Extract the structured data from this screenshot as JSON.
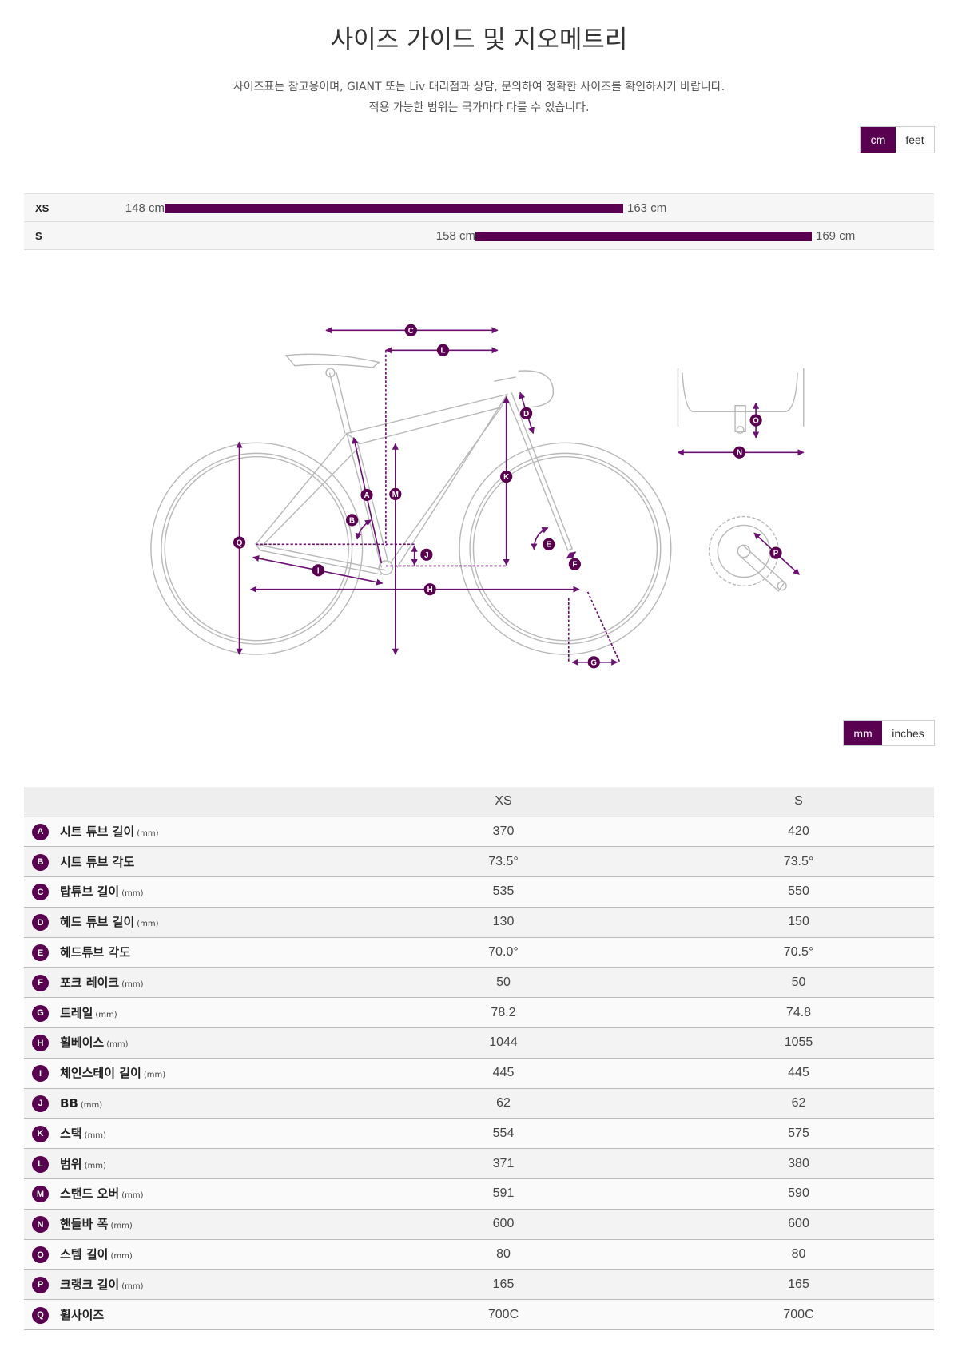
{
  "header": {
    "title": "사이즈 가이드 및 지오메트리",
    "subtitle_lines": [
      "사이즈표는 참고용이며, GIANT 또는 Liv 대리점과 상담, 문의하여 정확한 사이즈를 확인하시기 바랍니다.",
      "적용 가능한 범위는 국가마다 다를 수 있습니다."
    ]
  },
  "height_units": {
    "options": [
      "cm",
      "feet"
    ],
    "selected": "cm"
  },
  "rider_heights": [
    {
      "size": "XS",
      "min": "148 cm",
      "max": "163 cm",
      "min_value": 148,
      "max_value": 163
    },
    {
      "size": "S",
      "min": "158 cm",
      "max": "169 cm",
      "min_value": 158,
      "max_value": 169
    }
  ],
  "diagram": {
    "labels": [
      "A",
      "B",
      "C",
      "D",
      "E",
      "F",
      "G",
      "H",
      "I",
      "J",
      "K",
      "L",
      "M",
      "N",
      "O",
      "P",
      "Q"
    ]
  },
  "geometry_units": {
    "options": [
      "mm",
      "inches"
    ],
    "selected": "mm"
  },
  "geometry": {
    "columns": [
      "XS",
      "S"
    ],
    "rows": [
      {
        "key": "A",
        "name": "시트 튜브 길이",
        "unit": "(mm)",
        "values": [
          "370",
          "420"
        ]
      },
      {
        "key": "B",
        "name": "시트 튜브 각도",
        "unit": "",
        "values": [
          "73.5°",
          "73.5°"
        ]
      },
      {
        "key": "C",
        "name": "탑튜브 길이",
        "unit": "(mm)",
        "values": [
          "535",
          "550"
        ]
      },
      {
        "key": "D",
        "name": "헤드 튜브 길이",
        "unit": "(mm)",
        "values": [
          "130",
          "150"
        ]
      },
      {
        "key": "E",
        "name": "헤드튜브 각도",
        "unit": "",
        "values": [
          "70.0°",
          "70.5°"
        ]
      },
      {
        "key": "F",
        "name": "포크 레이크",
        "unit": "(mm)",
        "values": [
          "50",
          "50"
        ]
      },
      {
        "key": "G",
        "name": "트레일",
        "unit": "(mm)",
        "values": [
          "78.2",
          "74.8"
        ]
      },
      {
        "key": "H",
        "name": "휠베이스",
        "unit": "(mm)",
        "values": [
          "1044",
          "1055"
        ]
      },
      {
        "key": "I",
        "name": "체인스테이 길이",
        "unit": "(mm)",
        "values": [
          "445",
          "445"
        ]
      },
      {
        "key": "J",
        "name": "BB",
        "unit": "(mm)",
        "values": [
          "62",
          "62"
        ]
      },
      {
        "key": "K",
        "name": "스택",
        "unit": "(mm)",
        "values": [
          "554",
          "575"
        ]
      },
      {
        "key": "L",
        "name": "범위",
        "unit": "(mm)",
        "values": [
          "371",
          "380"
        ]
      },
      {
        "key": "M",
        "name": "스탠드 오버",
        "unit": "(mm)",
        "values": [
          "591",
          "590"
        ]
      },
      {
        "key": "N",
        "name": "핸들바 폭",
        "unit": "(mm)",
        "values": [
          "600",
          "600"
        ]
      },
      {
        "key": "O",
        "name": "스템 길이",
        "unit": "(mm)",
        "values": [
          "80",
          "80"
        ]
      },
      {
        "key": "P",
        "name": "크랭크 길이",
        "unit": "(mm)",
        "values": [
          "165",
          "165"
        ]
      },
      {
        "key": "Q",
        "name": "휠사이즈",
        "unit": "",
        "values": [
          "700C",
          "700C"
        ]
      }
    ]
  },
  "colors": {
    "accent": "#5a0050",
    "frame": "#b5b5b5",
    "header_bg": "#eeeeee"
  }
}
